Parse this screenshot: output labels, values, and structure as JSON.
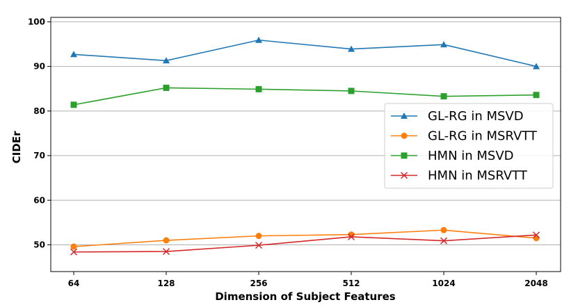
{
  "chart_data": {
    "type": "line",
    "title": "",
    "xlabel": "Dimension of Subject Features",
    "ylabel": "CIDEr",
    "categories": [
      "64",
      "128",
      "256",
      "512",
      "1024",
      "2048"
    ],
    "ylim": [
      44,
      101
    ],
    "yticks": [
      50,
      60,
      70,
      80,
      90,
      100
    ],
    "grid": "horizontal",
    "legend_position": "center-right",
    "series": [
      {
        "name": "GL-RG in MSVD",
        "color": "#1f77b4",
        "marker": "triangle",
        "values": [
          92.7,
          91.3,
          95.9,
          93.9,
          94.9,
          90.0
        ]
      },
      {
        "name": "GL-RG in MSRVTT",
        "color": "#ff7f0e",
        "marker": "circle",
        "values": [
          49.6,
          51.0,
          52.0,
          52.3,
          53.3,
          51.5
        ]
      },
      {
        "name": "HMN in MSVD",
        "color": "#2ca02c",
        "marker": "square",
        "values": [
          81.4,
          85.2,
          84.9,
          84.5,
          83.3,
          83.6
        ]
      },
      {
        "name": "HMN in MSRVTT",
        "color": "#d62728",
        "marker": "x",
        "values": [
          48.4,
          48.5,
          49.9,
          51.8,
          50.9,
          52.2
        ]
      }
    ]
  }
}
